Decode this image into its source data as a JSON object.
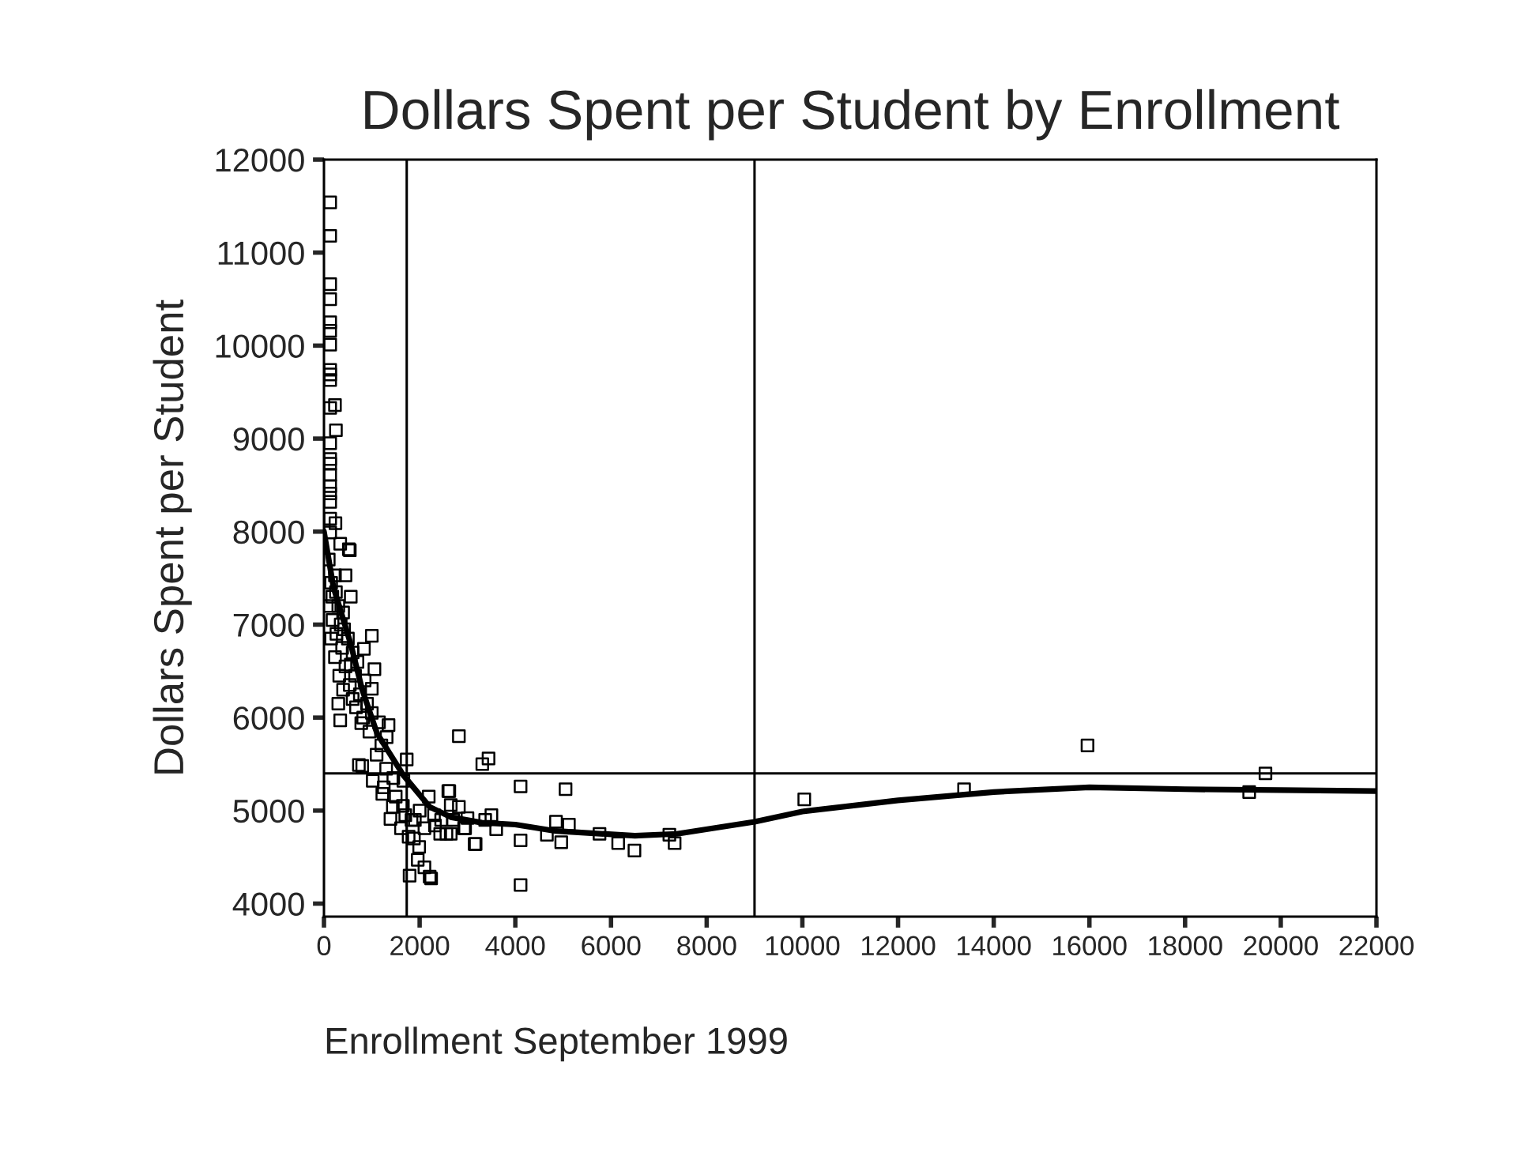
{
  "chart_data": {
    "type": "scatter",
    "title": "Dollars Spent per Student by Enrollment",
    "xlabel": "Enrollment September 1999",
    "ylabel": "Dollars Spent per Student",
    "xlim": [
      0,
      22000
    ],
    "xticks": [
      0,
      2000,
      4000,
      6000,
      8000,
      10000,
      12000,
      14000,
      16000,
      18000,
      20000,
      22000
    ],
    "ylim": [
      3860,
      12000
    ],
    "yticks": [
      4000,
      5000,
      6000,
      7000,
      8000,
      9000,
      10000,
      11000,
      12000
    ],
    "grid": false,
    "legend": false,
    "series": [
      {
        "marker": "square",
        "color": "#000000",
        "x": [
          130,
          130,
          130,
          130,
          130,
          130,
          130,
          130,
          130,
          130,
          130,
          230,
          250,
          130,
          130,
          130,
          130,
          130,
          130,
          130,
          130,
          240,
          130,
          520,
          340,
          540,
          230,
          450,
          175,
          560,
          400,
          1000,
          835,
          1055,
          560,
          1000,
          340,
          1350,
          1310,
          670,
          780,
          1730,
          2820,
          3310,
          3440,
          730,
          800,
          1020,
          1220,
          1440,
          1390,
          1610,
          1770,
          1880,
          1990,
          2190,
          2100,
          2320,
          2600,
          2820,
          2650,
          2930,
          3150,
          1960,
          1790,
          2100,
          2210,
          1660,
          1830,
          2430,
          2620,
          2650,
          4110,
          5050,
          4850,
          5120,
          4660,
          4960,
          4110,
          4110,
          3170,
          3370,
          2950,
          2560,
          5760,
          6150,
          6490,
          7220,
          7330,
          10040,
          13380,
          15960,
          19340,
          19680,
          2240,
          100,
          150,
          250,
          120,
          300,
          180,
          350,
          420,
          260,
          500,
          150,
          380,
          600,
          230,
          700,
          450,
          320,
          650,
          850,
          540,
          400,
          750,
          900,
          600,
          300,
          1000,
          820,
          1150,
          950,
          1200,
          1100,
          1300,
          1450,
          1250,
          1500,
          1650,
          1700,
          1900,
          2000,
          2300,
          2450,
          2700,
          3000,
          3500,
          3600
        ],
        "values": [
          11540,
          11180,
          10660,
          10500,
          10250,
          10160,
          10010,
          9740,
          9690,
          9630,
          9330,
          9360,
          9090,
          8950,
          8780,
          8730,
          8610,
          8490,
          8410,
          8320,
          8140,
          8090,
          7990,
          7810,
          7870,
          7800,
          7530,
          7530,
          7300,
          7300,
          7130,
          6880,
          6740,
          6520,
          6570,
          6310,
          5970,
          5920,
          5790,
          6110,
          5940,
          5550,
          5800,
          5500,
          5560,
          5490,
          5480,
          5320,
          5180,
          5040,
          4910,
          4810,
          4720,
          4700,
          4610,
          5150,
          4810,
          4840,
          5210,
          5040,
          4750,
          4810,
          4640,
          4470,
          4300,
          4390,
          4290,
          5320,
          4900,
          4750,
          5210,
          5060,
          5260,
          5230,
          4880,
          4850,
          4740,
          4660,
          4680,
          4200,
          4640,
          4900,
          4810,
          4750,
          4750,
          4650,
          4570,
          4740,
          4650,
          5120,
          5230,
          5700,
          5200,
          5400,
          4270,
          7700,
          7450,
          7350,
          7200,
          7200,
          7050,
          7000,
          6950,
          6900,
          6850,
          6850,
          6750,
          6700,
          6650,
          6600,
          6550,
          6450,
          6450,
          6400,
          6350,
          6300,
          6250,
          6150,
          6200,
          6150,
          6050,
          6000,
          5950,
          5850,
          5700,
          5600,
          5450,
          5350,
          5250,
          5150,
          5050,
          4950,
          4900,
          5000,
          4950,
          4900,
          4900,
          4920,
          4950,
          4800
        ]
      },
      {
        "type": "line",
        "marker": "none",
        "line_style": "solid",
        "color": "#000000",
        "x": [
          0,
          200,
          560,
          800,
          1110,
          1660,
          2210,
          2650,
          3300,
          4000,
          4850,
          6500,
          7380,
          9000,
          10000,
          12000,
          14000,
          16000,
          18000,
          20000,
          22000
        ],
        "values": [
          8000,
          7400,
          6790,
          6300,
          5830,
          5380,
          5040,
          4930,
          4870,
          4850,
          4780,
          4730,
          4750,
          4880,
          4990,
          5110,
          5200,
          5250,
          5230,
          5220,
          5210
        ]
      }
    ],
    "ref_lines": [
      {
        "axis": "x",
        "value": 1730,
        "color": "#000000"
      },
      {
        "axis": "x",
        "value": 9000,
        "color": "#000000"
      },
      {
        "axis": "y",
        "value": 5400,
        "color": "#000000"
      }
    ]
  }
}
